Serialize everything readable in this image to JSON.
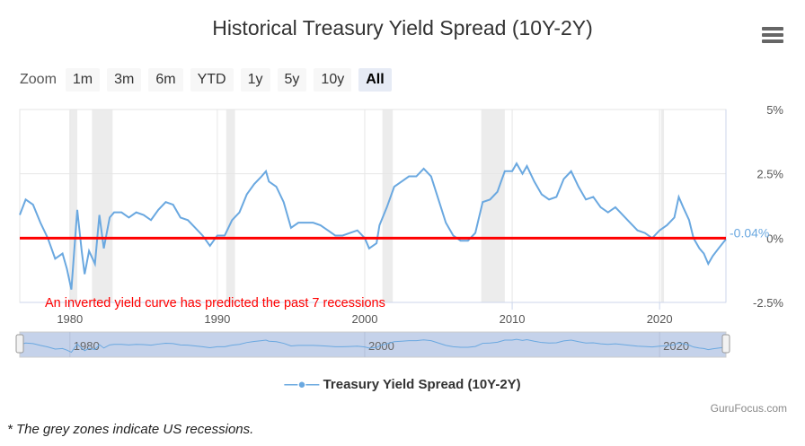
{
  "chart_data": {
    "type": "line",
    "title": "Historical Treasury Yield Spread (10Y-2Y)",
    "series": [
      {
        "name": "Treasury Yield Spread (10Y-2Y)",
        "color": "#6aa8e0",
        "x": [
          1976.6,
          1977,
          1977.5,
          1978,
          1978.5,
          1979,
          1979.5,
          1979.8,
          1980.1,
          1980.5,
          1980.8,
          1981,
          1981.3,
          1981.7,
          1982,
          1982.3,
          1982.7,
          1983,
          1983.5,
          1984,
          1984.5,
          1985,
          1985.5,
          1986,
          1986.5,
          1987,
          1987.5,
          1988,
          1988.5,
          1989,
          1989.5,
          1990,
          1990.5,
          1991,
          1991.5,
          1992,
          1992.5,
          1993,
          1993.3,
          1993.5,
          1994,
          1994.5,
          1995,
          1995.5,
          1996,
          1996.5,
          1997,
          1997.5,
          1998,
          1998.5,
          1999,
          1999.5,
          2000,
          2000.3,
          2000.8,
          2001,
          2001.5,
          2002,
          2002.5,
          2003,
          2003.5,
          2004,
          2004.5,
          2005,
          2005.5,
          2006,
          2006.5,
          2007,
          2007.5,
          2008,
          2008.5,
          2009,
          2009.5,
          2010,
          2010.3,
          2010.7,
          2011,
          2011.5,
          2012,
          2012.5,
          2013,
          2013.5,
          2014,
          2014.5,
          2015,
          2015.5,
          2016,
          2016.5,
          2017,
          2017.5,
          2018,
          2018.5,
          2019,
          2019.5,
          2020,
          2020.5,
          2021,
          2021.3,
          2021.6,
          2022,
          2022.3,
          2022.7,
          2023,
          2023.3,
          2023.6,
          2024,
          2024.5
        ],
        "values": [
          0.9,
          1.5,
          1.3,
          0.6,
          0,
          -0.8,
          -0.6,
          -1.2,
          -2.0,
          1.1,
          -0.5,
          -1.4,
          -0.5,
          -1.0,
          0.9,
          -0.4,
          0.8,
          1.0,
          1.0,
          0.8,
          1.0,
          0.9,
          0.7,
          1.1,
          1.4,
          1.3,
          0.8,
          0.7,
          0.4,
          0.1,
          -0.3,
          0.1,
          0.1,
          0.7,
          1.0,
          1.7,
          2.1,
          2.4,
          2.6,
          2.2,
          2.0,
          1.4,
          0.4,
          0.6,
          0.6,
          0.6,
          0.5,
          0.3,
          0.1,
          0.1,
          0.2,
          0.3,
          0,
          -0.4,
          -0.2,
          0.5,
          1.2,
          2.0,
          2.2,
          2.4,
          2.4,
          2.7,
          2.4,
          1.5,
          0.6,
          0.1,
          -0.1,
          -0.1,
          0.2,
          1.4,
          1.5,
          1.8,
          2.6,
          2.6,
          2.9,
          2.5,
          2.8,
          2.2,
          1.7,
          1.5,
          1.6,
          2.3,
          2.6,
          2.0,
          1.5,
          1.6,
          1.2,
          1.0,
          1.2,
          0.9,
          0.6,
          0.3,
          0.2,
          0.0,
          0.3,
          0.5,
          0.8,
          1.6,
          1.2,
          0.7,
          0,
          -0.4,
          -0.6,
          -1.0,
          -0.7,
          -0.4,
          -0.04
        ]
      }
    ],
    "ylim": [
      -2.5,
      5
    ],
    "yticks": [
      "-2.5%",
      "0%",
      "2.5%",
      "5%"
    ],
    "ytick_values": [
      -2.5,
      0,
      2.5,
      5
    ],
    "xlim": [
      1976.6,
      2024.5
    ],
    "xticks": [
      "1980",
      "1990",
      "2000",
      "2010",
      "2020"
    ],
    "xtick_values": [
      1980,
      1990,
      2000,
      2010,
      2020
    ],
    "last_value_label": "-0.04%",
    "reference_line": {
      "value": 0,
      "color": "#ff0000"
    },
    "annotation": "An inverted yield curve has predicted the past 7 recessions",
    "recessions": [
      [
        1980.0,
        1980.5
      ],
      [
        1981.5,
        1982.9
      ],
      [
        1990.6,
        1991.2
      ],
      [
        2001.2,
        2001.9
      ],
      [
        2007.9,
        2009.5
      ],
      [
        2020.1,
        2020.3
      ]
    ],
    "grid": true,
    "legend_placement": "bottom"
  },
  "zoom": {
    "label": "Zoom",
    "buttons": [
      "1m",
      "3m",
      "6m",
      "YTD",
      "1y",
      "5y",
      "10y",
      "All"
    ],
    "selected": "All"
  },
  "navigator": {
    "labels": [
      "1980",
      "2000",
      "2020"
    ]
  },
  "credit": "GuruFocus.com",
  "note": "* The grey zones indicate US recessions.",
  "menu_icon": "hamburger-icon"
}
